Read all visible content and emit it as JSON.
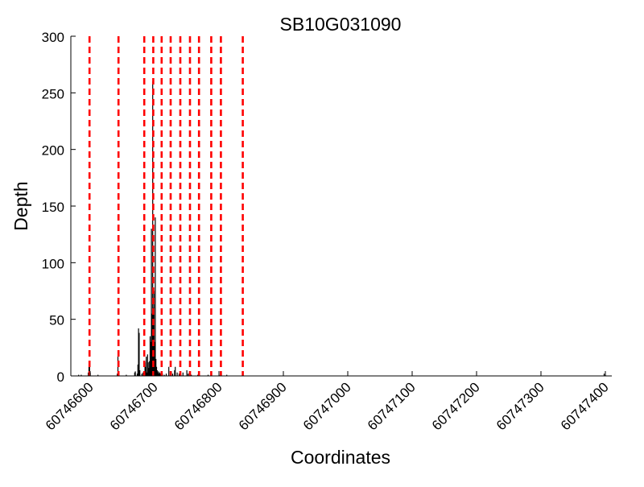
{
  "chart_data": {
    "type": "bar",
    "title": "SB10G031090",
    "xlabel": "Coordinates",
    "ylabel": "Depth",
    "xlim": [
      60746570,
      60747410
    ],
    "ylim": [
      0,
      300
    ],
    "x_ticks": [
      60746600,
      60746700,
      60746800,
      60746900,
      60747000,
      60747100,
      60747200,
      60747300,
      60747400
    ],
    "x_tick_labels": [
      "60746600",
      "60746700",
      "60746800",
      "60746900",
      "60747000",
      "60747100",
      "60747200",
      "60747300",
      "60747400"
    ],
    "y_ticks": [
      0,
      50,
      100,
      150,
      200,
      250,
      300
    ],
    "y_tick_labels": [
      "0",
      "50",
      "100",
      "150",
      "200",
      "250",
      "300"
    ],
    "grid": false,
    "series": [
      {
        "color": "#000000",
        "x": [
          60746582,
          60746586,
          60746597,
          60746598,
          60746599,
          60746600,
          60746612,
          60746642,
          60746643,
          60746644,
          60746656,
          60746669,
          60746670,
          60746673,
          60746674,
          60746675,
          60746676,
          60746677,
          60746680,
          60746682,
          60746685,
          60746686,
          60746687,
          60746688,
          60746689,
          60746690,
          60746691,
          60746692,
          60746693,
          60746694,
          60746695,
          60746696,
          60746697,
          60746698,
          60746699,
          60746700,
          60746701,
          60746702,
          60746703,
          60746704,
          60746705,
          60746706,
          60746707,
          60746708,
          60746709,
          60746710,
          60746712,
          60746715,
          60746718,
          60746722,
          60746725,
          60746726,
          60746728,
          60746731,
          60746732,
          60746735,
          60746738,
          60746741,
          60746744,
          60746750,
          60746752,
          60746754,
          60746757,
          60746767,
          60746783,
          60746800,
          60746812,
          60747398,
          60747400
        ],
        "values": [
          1,
          1,
          3,
          8,
          12,
          3,
          1,
          2,
          17,
          4,
          1,
          3,
          4,
          2,
          10,
          42,
          38,
          5,
          2,
          3,
          12,
          8,
          17,
          3,
          19,
          12,
          7,
          13,
          35,
          30,
          130,
          55,
          260,
          60,
          75,
          30,
          140,
          15,
          8,
          5,
          3,
          4,
          2,
          3,
          2,
          3,
          2,
          1,
          2,
          8,
          3,
          4,
          2,
          5,
          8,
          3,
          2,
          1,
          3,
          5,
          2,
          3,
          1,
          1,
          1,
          1,
          1,
          2,
          1
        ]
      }
    ],
    "reference_lines": {
      "color": "#ff0000",
      "style": "dashed",
      "x": [
        60746599,
        60746644,
        60746684,
        60746698,
        60746711,
        60746725,
        60746740,
        60746755,
        60746769,
        60746788,
        60746803,
        60746837
      ]
    }
  }
}
